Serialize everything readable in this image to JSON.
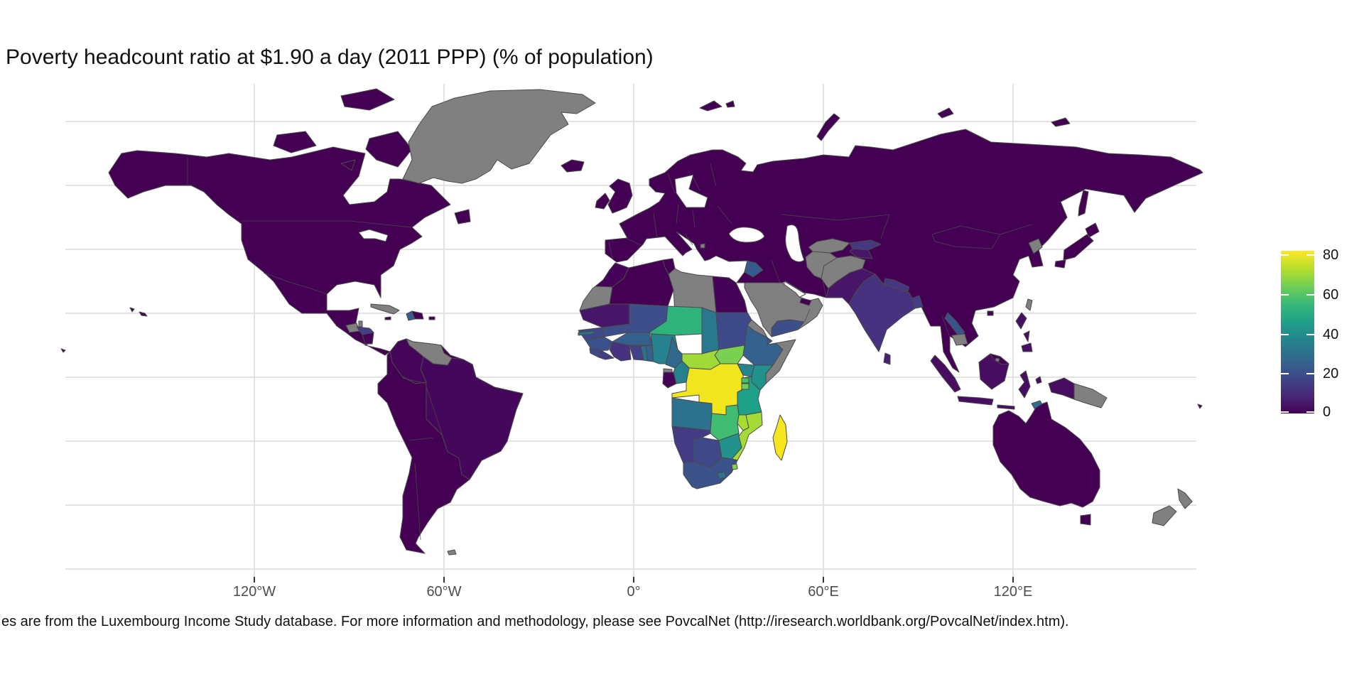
{
  "chart_data": {
    "type": "choropleth",
    "title": "Poverty headcount ratio at $1.90 a day (2011 PPP) (% of population)",
    "caption": "es are from the Luxembourg Income Study database. For more information and methodology, please see PovcalNet (http://iresearch.worldbank.org/PovcalNet/index.htm).",
    "x_axis": {
      "ticks": [
        "120°W",
        "60°W",
        "0°",
        "60°E",
        "120°E"
      ]
    },
    "default_color": "#440154",
    "water_color": "#ffffff",
    "gridline_color": "#e3e3e3",
    "axis_text_color": "#4d4d4d",
    "legend": {
      "min": 0,
      "max": 82.3,
      "ticks": [
        80,
        60,
        40,
        20,
        0
      ],
      "na_color": "#808080",
      "gradient_bottom_to_top": [
        "#440154",
        "#482878",
        "#3e4989",
        "#31688e",
        "#26828e",
        "#1f9e89",
        "#35b779",
        "#6ece58",
        "#b5de2b",
        "#fde725"
      ]
    },
    "regions": [
      {
        "id": "north-america",
        "name": "United States, Canada, Mexico & Central America (base)",
        "value": 1,
        "color": "#440154"
      },
      {
        "id": "greenland",
        "name": "Greenland",
        "value": null,
        "color": null
      },
      {
        "id": "guatemala",
        "name": "Guatemala",
        "value": null,
        "color": null
      },
      {
        "id": "belize",
        "name": "Belize",
        "value": null,
        "color": null
      },
      {
        "id": "honduras",
        "name": "Honduras",
        "value": 16,
        "color": "#424086"
      },
      {
        "id": "nicaragua",
        "name": "Nicaragua",
        "value": 3,
        "color": "#450458"
      },
      {
        "id": "cuba",
        "name": "Cuba",
        "value": null,
        "color": null
      },
      {
        "id": "jamaica",
        "name": "Jamaica",
        "value": 1,
        "color": "#440154"
      },
      {
        "id": "haiti",
        "name": "Haiti",
        "value": 24,
        "color": "#365d8d"
      },
      {
        "id": "dominican-republic",
        "name": "Dominican Republic",
        "value": 1.6,
        "color": "#440154"
      },
      {
        "id": "puerto-rico",
        "name": "Puerto Rico",
        "value": 1,
        "color": "#440154"
      },
      {
        "id": "south-america",
        "name": "South America other (Peru, Bolivia, Argentina, Chile, Ecuador, Paraguay, Uruguay, Guyana, Suriname)",
        "value": 1,
        "color": "#440154"
      },
      {
        "id": "venezuela",
        "name": "Venezuela",
        "value": null,
        "color": null
      },
      {
        "id": "colombia",
        "name": "Colombia",
        "value": 4.5,
        "color": "#45065a"
      },
      {
        "id": "brazil",
        "name": "Brazil",
        "value": 4.6,
        "color": "#45075b"
      },
      {
        "id": "falkland-islands",
        "name": "Falkland Islands",
        "value": null,
        "color": null
      },
      {
        "id": "eurasia",
        "name": "Europe, Russia, Turkey, Iran, China & SE Asia (base)",
        "value": 0.5,
        "color": "#440154"
      },
      {
        "id": "kosovo",
        "name": "Kosovo",
        "value": null,
        "color": null
      },
      {
        "id": "syria",
        "name": "Syria",
        "value": 22,
        "color": "#375a8c"
      },
      {
        "id": "saudi-arabia-oman",
        "name": "Saudi Arabia / Oman (Arabian Peninsula)",
        "value": null,
        "color": null
      },
      {
        "id": "yemen",
        "name": "Yemen",
        "value": 19,
        "color": "#3c4f8a"
      },
      {
        "id": "uae",
        "name": "United Arab Emirates",
        "value": 0.5,
        "color": "#440154"
      },
      {
        "id": "turkmenistan",
        "name": "Turkmenistan",
        "value": null,
        "color": null
      },
      {
        "id": "uzbekistan",
        "name": "Uzbekistan",
        "value": null,
        "color": null
      },
      {
        "id": "afghanistan",
        "name": "Afghanistan",
        "value": null,
        "color": null
      },
      {
        "id": "kyrgyzstan",
        "name": "Kyrgyzstan",
        "value": 13,
        "color": "#453781"
      },
      {
        "id": "tajikistan",
        "name": "Tajikistan",
        "value": 6,
        "color": "#471669"
      },
      {
        "id": "pakistan",
        "name": "Pakistan",
        "value": 6,
        "color": "#471669"
      },
      {
        "id": "india",
        "name": "India",
        "value": 11,
        "color": "#46327e"
      },
      {
        "id": "nepal",
        "name": "Nepal",
        "value": 13,
        "color": "#453781"
      },
      {
        "id": "bangladesh",
        "name": "Bangladesh",
        "value": 15,
        "color": "#423e85"
      },
      {
        "id": "sri-lanka",
        "name": "Sri Lanka",
        "value": 8,
        "color": "#482173"
      },
      {
        "id": "laos",
        "name": "Laos",
        "value": 22,
        "color": "#3a538b"
      },
      {
        "id": "cambodia",
        "name": "Cambodia",
        "value": null,
        "color": null
      },
      {
        "id": "north-korea",
        "name": "North Korea",
        "value": null,
        "color": null
      },
      {
        "id": "taiwan",
        "name": "Taiwan",
        "value": null,
        "color": null
      },
      {
        "id": "japan",
        "name": "Japan",
        "value": 0.7,
        "color": "#440154"
      },
      {
        "id": "philippines",
        "name": "Philippines",
        "value": 6,
        "color": "#470f62"
      },
      {
        "id": "malaysia",
        "name": "Malaysia",
        "value": 0.5,
        "color": "#440154"
      },
      {
        "id": "brunei",
        "name": "Brunei",
        "value": null,
        "color": null
      },
      {
        "id": "indonesia",
        "name": "Indonesia",
        "value": 5,
        "color": "#470d60"
      },
      {
        "id": "timor-leste",
        "name": "Timor-Leste",
        "value": 30,
        "color": "#2e6d8e"
      },
      {
        "id": "papua-new-guinea",
        "name": "Papua New Guinea",
        "value": null,
        "color": null
      },
      {
        "id": "australia",
        "name": "Australia",
        "value": 0.5,
        "color": "#440154"
      },
      {
        "id": "new-zealand",
        "name": "New Zealand",
        "value": null,
        "color": null
      },
      {
        "id": "morocco",
        "name": "Morocco",
        "value": 1,
        "color": "#450457"
      },
      {
        "id": "western-sahara",
        "name": "Western Sahara",
        "value": null,
        "color": null
      },
      {
        "id": "algeria",
        "name": "Algeria",
        "value": 0.5,
        "color": "#440154"
      },
      {
        "id": "tunisia",
        "name": "Tunisia",
        "value": 0.3,
        "color": "#440154"
      },
      {
        "id": "libya",
        "name": "Libya",
        "value": null,
        "color": null
      },
      {
        "id": "egypt",
        "name": "Egypt",
        "value": 1.3,
        "color": "#450457"
      },
      {
        "id": "mauritania",
        "name": "Mauritania",
        "value": 6,
        "color": "#471669"
      },
      {
        "id": "senegal",
        "name": "Senegal",
        "value": 17,
        "color": "#3e4989"
      },
      {
        "id": "gambia",
        "name": "Gambia",
        "value": 33,
        "color": "#2c728e"
      },
      {
        "id": "guinea",
        "name": "Guinea",
        "value": 20,
        "color": "#3c508b"
      },
      {
        "id": "sierra-leone",
        "name": "Sierra Leone",
        "value": 17,
        "color": "#3f4889"
      },
      {
        "id": "liberia",
        "name": "Liberia",
        "value": 15,
        "color": "#433e85"
      },
      {
        "id": "cote-divoire",
        "name": "Côte d'Ivoire",
        "value": 11,
        "color": "#46327e"
      },
      {
        "id": "ghana",
        "name": "Ghana",
        "value": 16,
        "color": "#424086"
      },
      {
        "id": "togo",
        "name": "Togo",
        "value": 33,
        "color": "#2c728e"
      },
      {
        "id": "benin",
        "name": "Benin",
        "value": 26,
        "color": "#34618d"
      },
      {
        "id": "burkina-faso",
        "name": "Burkina Faso",
        "value": 26,
        "color": "#35608d"
      },
      {
        "id": "mali",
        "name": "Mali",
        "value": 19,
        "color": "#3d4e8a"
      },
      {
        "id": "niger",
        "name": "Niger",
        "value": 50,
        "color": "#2eb37c"
      },
      {
        "id": "nigeria",
        "name": "Nigeria",
        "value": 40,
        "color": "#26828e"
      },
      {
        "id": "chad",
        "name": "Chad",
        "value": 36,
        "color": "#2a788e"
      },
      {
        "id": "sudan",
        "name": "Sudan",
        "value": 18,
        "color": "#3e4989"
      },
      {
        "id": "eritrea",
        "name": "Eritrea",
        "value": null,
        "color": null
      },
      {
        "id": "djibouti",
        "name": "Djibouti",
        "value": 22,
        "color": "#3a538b"
      },
      {
        "id": "ethiopia",
        "name": "Ethiopia",
        "value": 26,
        "color": "#34618d"
      },
      {
        "id": "somalia",
        "name": "Somalia",
        "value": null,
        "color": null
      },
      {
        "id": "south-sudan",
        "name": "South Sudan",
        "value": 60,
        "color": "#7ad151"
      },
      {
        "id": "central-african-republic",
        "name": "Central African Republic",
        "value": 66,
        "color": "#a0da39"
      },
      {
        "id": "cameroon",
        "name": "Cameroon",
        "value": 28,
        "color": "#31688e"
      },
      {
        "id": "equatorial-guinea",
        "name": "Equatorial Guinea",
        "value": null,
        "color": null
      },
      {
        "id": "gabon",
        "name": "Gabon",
        "value": 2,
        "color": "#450457"
      },
      {
        "id": "congo-republic",
        "name": "Republic of the Congo",
        "value": 39,
        "color": "#27808e"
      },
      {
        "id": "dr-congo",
        "name": "Democratic Republic of the Congo",
        "value": 77,
        "color": "#f1e51d"
      },
      {
        "id": "uganda",
        "name": "Uganda",
        "value": 41,
        "color": "#25848e"
      },
      {
        "id": "kenya",
        "name": "Kenya",
        "value": 45,
        "color": "#21918c"
      },
      {
        "id": "rwanda",
        "name": "Rwanda",
        "value": 57,
        "color": "#47c06e"
      },
      {
        "id": "burundi",
        "name": "Burundi",
        "value": 62,
        "color": "#6ece58"
      },
      {
        "id": "tanzania",
        "name": "Tanzania",
        "value": 46,
        "color": "#1fa088"
      },
      {
        "id": "angola",
        "name": "Angola",
        "value": 32,
        "color": "#2c718e"
      },
      {
        "id": "zambia",
        "name": "Zambia",
        "value": 56,
        "color": "#40bd72"
      },
      {
        "id": "malawi",
        "name": "Malawi",
        "value": 67,
        "color": "#a8db34"
      },
      {
        "id": "mozambique",
        "name": "Mozambique",
        "value": 66,
        "color": "#a5db36"
      },
      {
        "id": "zimbabwe",
        "name": "Zimbabwe",
        "value": 44,
        "color": "#22938c"
      },
      {
        "id": "botswana",
        "name": "Botswana",
        "value": 16,
        "color": "#3f4889"
      },
      {
        "id": "namibia",
        "name": "Namibia",
        "value": 13,
        "color": "#433c84"
      },
      {
        "id": "south-africa",
        "name": "South Africa",
        "value": 19,
        "color": "#3b528b"
      },
      {
        "id": "lesotho",
        "name": "Lesotho",
        "value": 33,
        "color": "#2c728e"
      },
      {
        "id": "eswatini",
        "name": "Eswatini",
        "value": 60,
        "color": "#86d549"
      },
      {
        "id": "madagascar",
        "name": "Madagascar",
        "value": 78,
        "color": "#f6e620"
      }
    ]
  }
}
